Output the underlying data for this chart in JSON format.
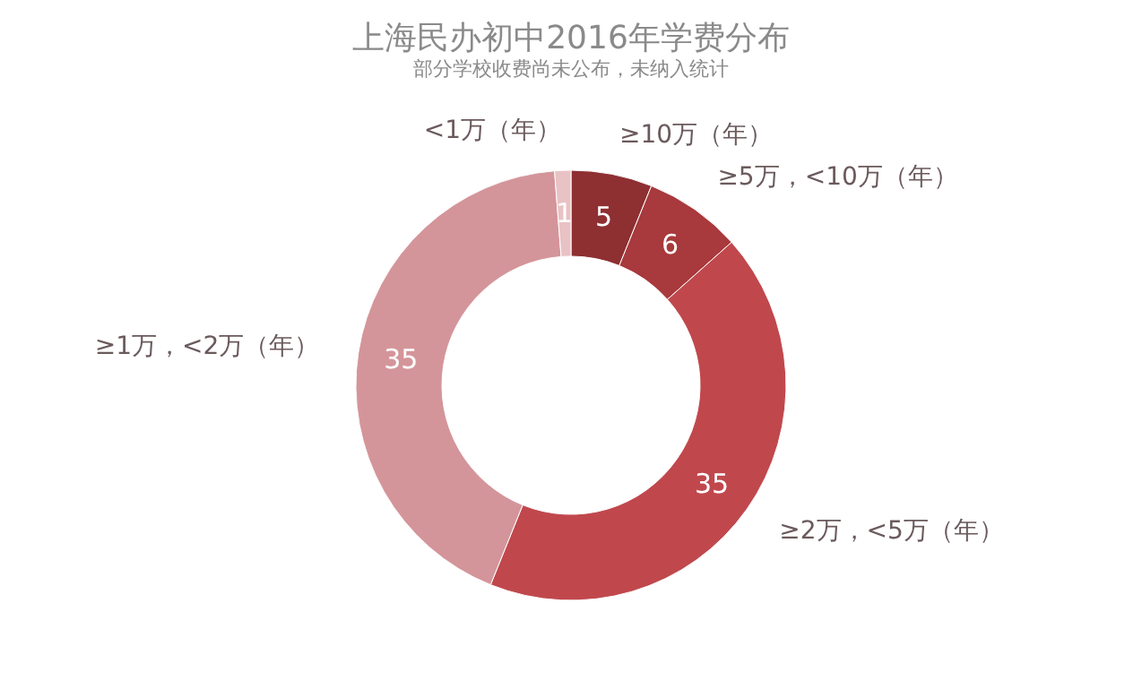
{
  "chart_data": {
    "type": "donut",
    "title": "上海民办初中2016年学费分布",
    "subtitle": "部分学校收费尚未公布，未纳入统计",
    "categories": [
      "≥10万（年）",
      "≥5万，<10万（年）",
      "≥2万，<5万（年）",
      "≥1万，<2万（年）",
      "<1万（年）"
    ],
    "values": [
      5,
      6,
      35,
      35,
      1
    ],
    "colors": [
      "#8e2f32",
      "#a8393c",
      "#c0484d",
      "#d4959a",
      "#e8c2c4"
    ],
    "data_labels": true
  }
}
